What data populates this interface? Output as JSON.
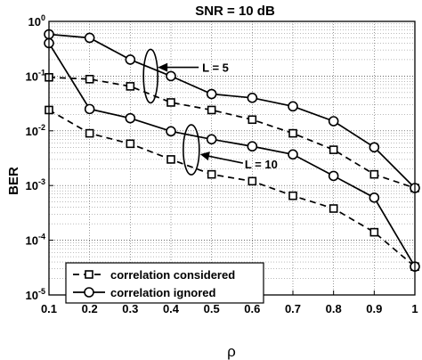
{
  "chart_data": {
    "type": "line",
    "title": "SNR = 10 dB",
    "xlabel": "ρ",
    "ylabel": "BER",
    "xlim": [
      0.1,
      1.0
    ],
    "ylim": [
      1e-05,
      1
    ],
    "yscale": "log",
    "grid": true,
    "x": [
      0.1,
      0.2,
      0.3,
      0.4,
      0.5,
      0.6,
      0.7,
      0.8,
      0.9,
      1.0
    ],
    "x_tick_labels": [
      "0.1",
      "0.2",
      "0.3",
      "0.4",
      "0.5",
      "0.6",
      "0.7",
      "0.8",
      "0.9",
      "1"
    ],
    "y_ticks": [
      {
        "base": "10",
        "exp": "0"
      },
      {
        "base": "10",
        "exp": "-1"
      },
      {
        "base": "10",
        "exp": "-2"
      },
      {
        "base": "10",
        "exp": "-3"
      },
      {
        "base": "10",
        "exp": "-4"
      },
      {
        "base": "10",
        "exp": "-5"
      }
    ],
    "series": [
      {
        "group": "L = 5",
        "style": "dashed",
        "marker": "square",
        "values": [
          0.095,
          0.088,
          0.065,
          0.033,
          0.024,
          0.016,
          0.009,
          0.0045,
          0.0016,
          0.0009
        ]
      },
      {
        "group": "L = 5",
        "style": "solid",
        "marker": "circle",
        "values": [
          0.58,
          0.5,
          0.2,
          0.1,
          0.047,
          0.04,
          0.028,
          0.015,
          0.005,
          0.0009
        ]
      },
      {
        "group": "L = 10",
        "style": "dashed",
        "marker": "square",
        "values": [
          0.024,
          0.009,
          0.0058,
          0.003,
          0.0016,
          0.0012,
          0.00065,
          0.00038,
          0.00014,
          3.3e-05
        ]
      },
      {
        "group": "L = 10",
        "style": "solid",
        "marker": "circle",
        "values": [
          0.4,
          0.025,
          0.017,
          0.0098,
          0.007,
          0.0052,
          0.0037,
          0.0015,
          0.0006,
          3.3e-05
        ]
      }
    ],
    "legend": {
      "position": "bottom-left",
      "entries": [
        {
          "label": "correlation considered",
          "style": "dashed",
          "marker": "square"
        },
        {
          "label": "correlation ignored",
          "style": "solid",
          "marker": "circle"
        }
      ]
    },
    "annotations": [
      {
        "text": "L = 5",
        "at_x": 0.35,
        "at_y": 0.1
      },
      {
        "text": "L = 10",
        "at_x": 0.45,
        "at_y": 0.0045
      }
    ]
  }
}
